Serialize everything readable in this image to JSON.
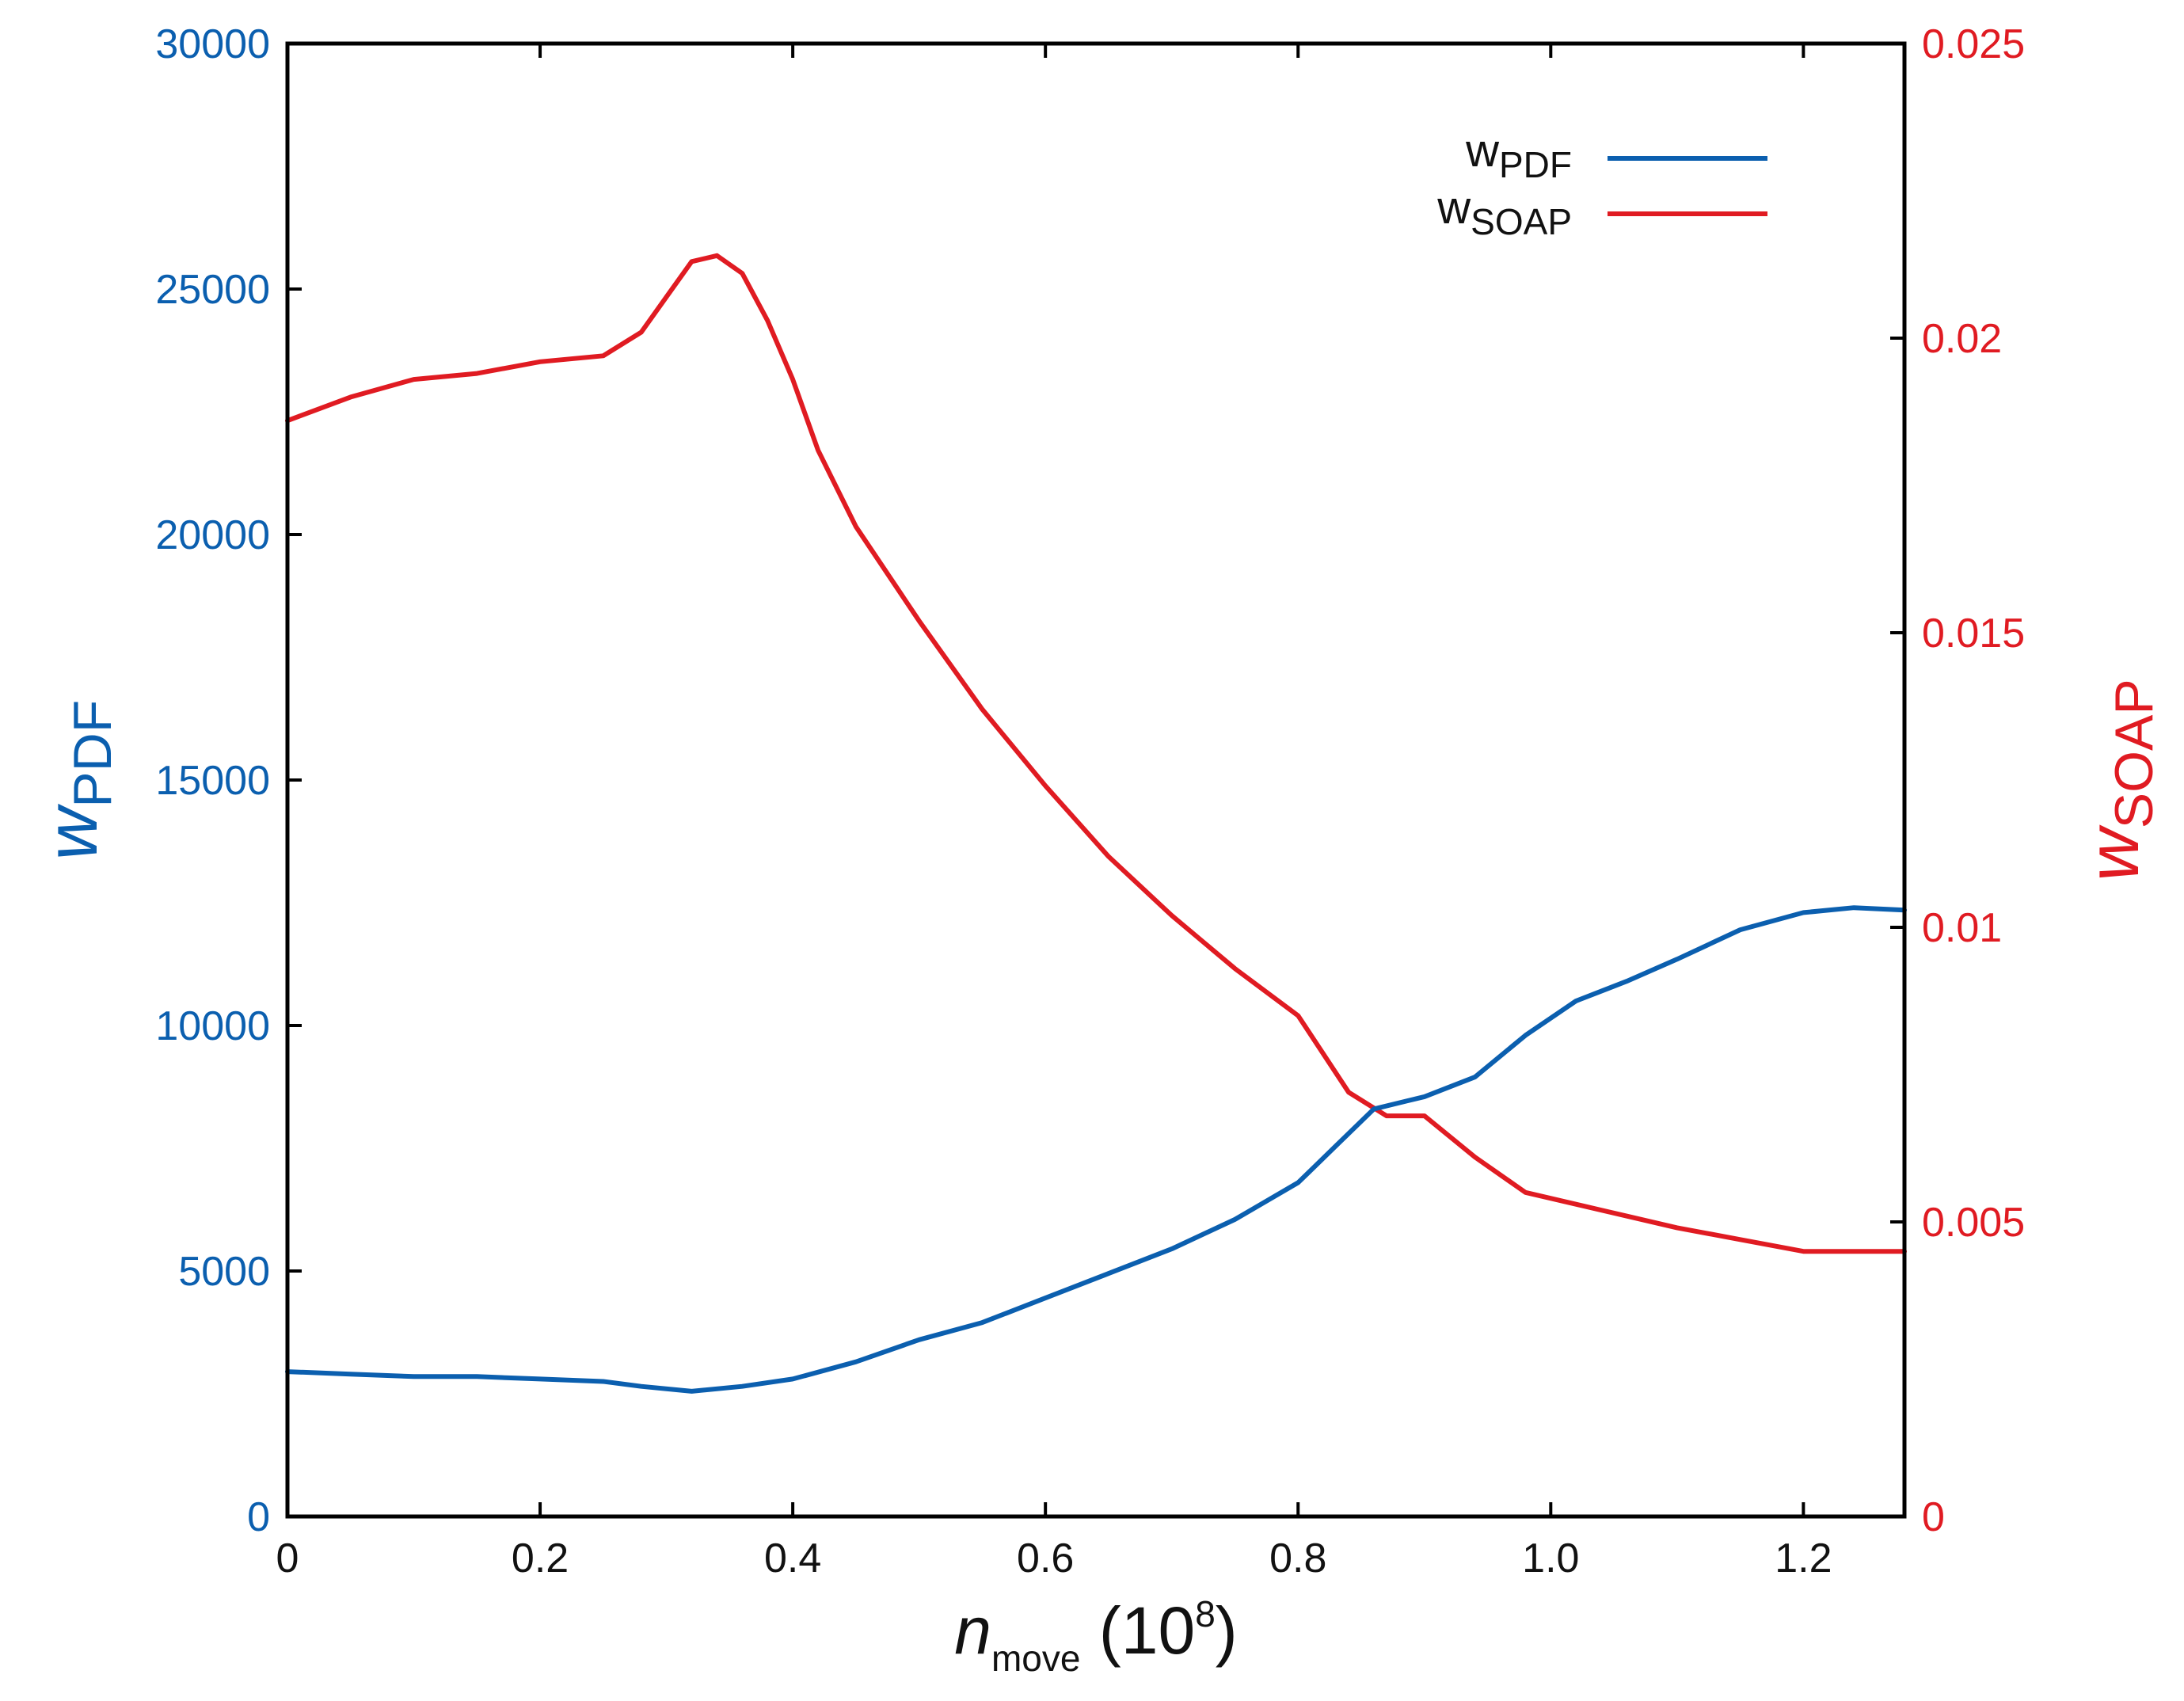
{
  "colors": {
    "left_axis": "#0b5faf",
    "right_axis": "#e01b22",
    "frame": "#000000"
  },
  "chart_data": {
    "type": "line",
    "x_axis": {
      "label_main": "n",
      "label_sub": "move",
      "label_tail": " (10",
      "label_exp": "8",
      "label_close": ")",
      "range": [
        0,
        1.28
      ],
      "ticks": [
        0,
        0.2,
        0.4,
        0.6,
        0.8,
        1.0,
        1.2
      ],
      "tick_labels": [
        "0",
        "0.2",
        "0.4",
        "0.6",
        "0.8",
        "1.0",
        "1.2"
      ]
    },
    "y_left": {
      "label_main": "w",
      "label_sub": "PDF",
      "range": [
        0,
        30000
      ],
      "ticks": [
        0,
        5000,
        10000,
        15000,
        20000,
        25000,
        30000
      ],
      "tick_labels": [
        "0",
        "5000",
        "10000",
        "15000",
        "20000",
        "25000",
        "30000"
      ]
    },
    "y_right": {
      "label_main": "w",
      "label_sub": "SOAP",
      "range": [
        0,
        0.025
      ],
      "ticks": [
        0,
        0.005,
        0.01,
        0.015,
        0.02,
        0.025
      ],
      "tick_labels": [
        "0",
        "0.005",
        "0.01",
        "0.015",
        "0.02",
        "0.025"
      ]
    },
    "legend": {
      "position": "top-right"
    },
    "series": [
      {
        "name_main": "w",
        "name_sub": "PDF",
        "axis": "left",
        "color": "#0b5faf",
        "x": [
          0,
          0.05,
          0.1,
          0.15,
          0.2,
          0.25,
          0.28,
          0.32,
          0.36,
          0.4,
          0.45,
          0.5,
          0.55,
          0.6,
          0.65,
          0.7,
          0.75,
          0.8,
          0.83,
          0.86,
          0.9,
          0.94,
          0.98,
          1.02,
          1.06,
          1.1,
          1.15,
          1.2,
          1.24,
          1.28
        ],
        "y": [
          2950,
          2900,
          2850,
          2850,
          2800,
          2750,
          2650,
          2550,
          2650,
          2800,
          3150,
          3600,
          3950,
          4450,
          4950,
          5450,
          6050,
          6800,
          7550,
          8300,
          8550,
          8950,
          9800,
          10500,
          10900,
          11350,
          11950,
          12300,
          12400,
          12350
        ]
      },
      {
        "name_main": "w",
        "name_sub": "SOAP",
        "axis": "right",
        "color": "#e01b22",
        "x": [
          0,
          0.05,
          0.1,
          0.15,
          0.2,
          0.25,
          0.28,
          0.3,
          0.32,
          0.34,
          0.36,
          0.38,
          0.4,
          0.42,
          0.45,
          0.5,
          0.55,
          0.6,
          0.65,
          0.7,
          0.75,
          0.8,
          0.84,
          0.87,
          0.9,
          0.94,
          0.98,
          1.02,
          1.06,
          1.1,
          1.15,
          1.2,
          1.24,
          1.28
        ],
        "y": [
          0.0186,
          0.019,
          0.0193,
          0.0194,
          0.0196,
          0.0197,
          0.0201,
          0.0207,
          0.0213,
          0.0214,
          0.0211,
          0.0203,
          0.0193,
          0.0181,
          0.0168,
          0.0152,
          0.0137,
          0.0124,
          0.0112,
          0.0102,
          0.0093,
          0.0085,
          0.0072,
          0.0068,
          0.0068,
          0.0061,
          0.0055,
          0.0053,
          0.0051,
          0.0049,
          0.0047,
          0.0045,
          0.0045,
          0.0045
        ]
      }
    ]
  }
}
